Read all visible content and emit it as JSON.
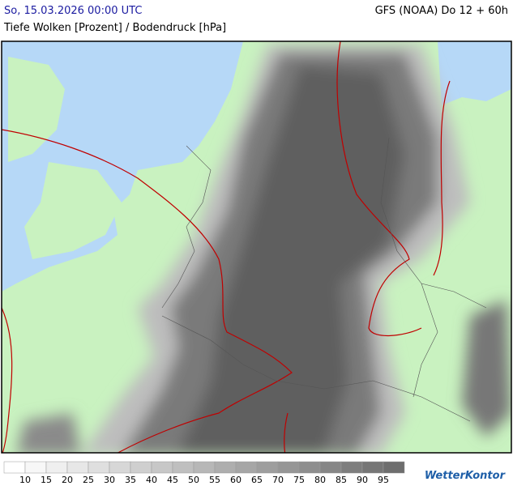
{
  "header": {
    "datetime": "So, 15.03.2026 00:00 UTC",
    "model": "GFS (NOAA) Do 12 + 60h",
    "subtitle": "Tiefe Wolken [Prozent] / Bodendruck [hPa]"
  },
  "legend": {
    "labels": [
      "10",
      "15",
      "20",
      "25",
      "30",
      "35",
      "40",
      "45",
      "50",
      "55",
      "60",
      "65",
      "70",
      "75",
      "80",
      "85",
      "90",
      "95"
    ]
  },
  "brand": "WetterKontor"
}
